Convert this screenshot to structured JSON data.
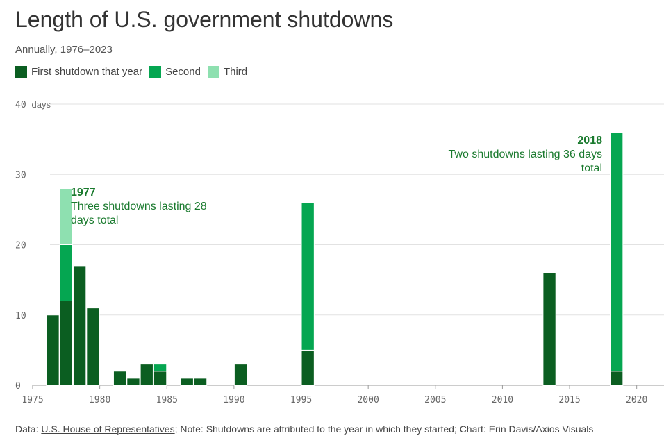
{
  "header": {
    "title": "Length of U.S. government shutdowns",
    "subtitle": "Annually, 1976–2023"
  },
  "legend": [
    {
      "label": "First shutdown that year",
      "color": "#0b5e21"
    },
    {
      "label": "Second",
      "color": "#05a651"
    },
    {
      "label": "Third",
      "color": "#8ee0b0"
    }
  ],
  "annotations": [
    {
      "year_label": "1977",
      "text": "Three shutdowns lasting 28 days total"
    },
    {
      "year_label": "2018",
      "text": "Two shutdowns lasting 36 days total"
    }
  ],
  "footer": {
    "prefix": "Data: ",
    "source_link": "U.S. House of Representatives",
    "rest": "; Note: Shutdowns are attributed to the year in which they started; Chart: Erin Davis/Axios Visuals"
  },
  "chart_data": {
    "type": "bar",
    "stacked": true,
    "x_ticks": [
      1975,
      1980,
      1985,
      1990,
      1995,
      2000,
      2005,
      2010,
      2015,
      2020
    ],
    "y_ticks": [
      0,
      10,
      20,
      30,
      40
    ],
    "y_unit_label": "days",
    "xlim": [
      1975,
      2021
    ],
    "ylim": [
      0,
      40
    ],
    "grid": true,
    "series_names": [
      "First shutdown that year",
      "Second",
      "Third"
    ],
    "bars": [
      {
        "year": 1976,
        "values": [
          10
        ]
      },
      {
        "year": 1977,
        "values": [
          12,
          8,
          8
        ]
      },
      {
        "year": 1978,
        "values": [
          17
        ]
      },
      {
        "year": 1979,
        "values": [
          11
        ]
      },
      {
        "year": 1981,
        "values": [
          2
        ]
      },
      {
        "year": 1982,
        "values": [
          1
        ]
      },
      {
        "year": 1983,
        "values": [
          3
        ]
      },
      {
        "year": 1984,
        "values": [
          2,
          1
        ]
      },
      {
        "year": 1986,
        "values": [
          1
        ]
      },
      {
        "year": 1987,
        "values": [
          1
        ]
      },
      {
        "year": 1990,
        "values": [
          3
        ]
      },
      {
        "year": 1995,
        "values": [
          5,
          21
        ]
      },
      {
        "year": 2013,
        "values": [
          16
        ]
      },
      {
        "year": 2018,
        "values": [
          2,
          34
        ]
      }
    ]
  }
}
